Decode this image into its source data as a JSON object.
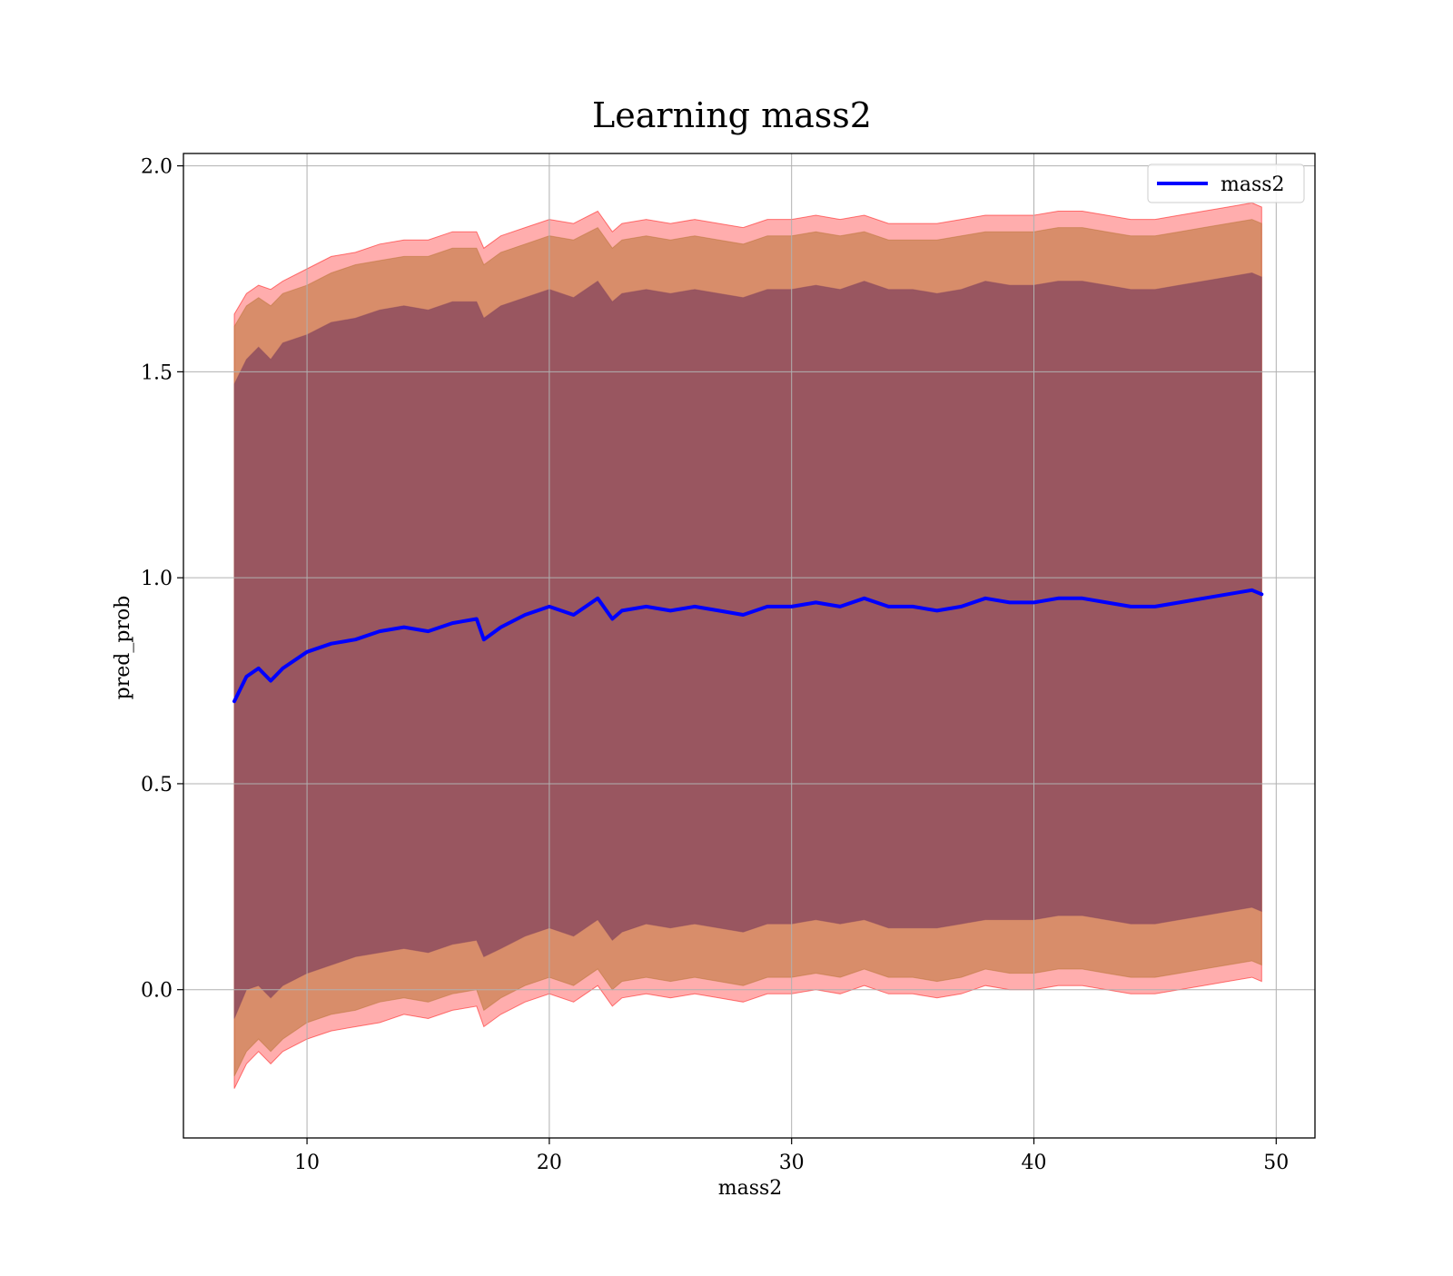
{
  "chart_data": {
    "type": "line",
    "title": "Learning mass2",
    "xlabel": "mass2",
    "ylabel": "pred_prob",
    "xlim": [
      4.9,
      51.6
    ],
    "ylim": [
      -0.36,
      2.03
    ],
    "x_ticks": [
      10,
      20,
      30,
      40,
      50
    ],
    "x_tick_labels": [
      "10",
      "20",
      "30",
      "40",
      "50"
    ],
    "y_ticks": [
      0.0,
      0.5,
      1.0,
      1.5,
      2.0
    ],
    "y_tick_labels": [
      "0.0",
      "0.5",
      "1.0",
      "1.5",
      "2.0"
    ],
    "grid": true,
    "legend": {
      "position": "top-right",
      "entries": [
        "mass2"
      ]
    },
    "series": [
      {
        "name": "mass2",
        "color": "#0000ff",
        "x": [
          7.0,
          7.5,
          8.0,
          8.5,
          9.0,
          10.0,
          11.0,
          12.0,
          13.0,
          14.0,
          15.0,
          16.0,
          17.0,
          17.3,
          18.0,
          19.0,
          20.0,
          21.0,
          22.0,
          22.6,
          23.0,
          24.0,
          25.0,
          26.0,
          27.0,
          28.0,
          29.0,
          30.0,
          31.0,
          32.0,
          33.0,
          34.0,
          35.0,
          36.0,
          37.0,
          38.0,
          39.0,
          40.0,
          41.0,
          42.0,
          43.0,
          44.0,
          45.0,
          46.0,
          47.0,
          48.0,
          49.0,
          49.4
        ],
        "y": [
          0.7,
          0.76,
          0.78,
          0.75,
          0.78,
          0.82,
          0.84,
          0.85,
          0.87,
          0.88,
          0.87,
          0.89,
          0.9,
          0.85,
          0.88,
          0.91,
          0.93,
          0.91,
          0.95,
          0.9,
          0.92,
          0.93,
          0.92,
          0.93,
          0.92,
          0.91,
          0.93,
          0.93,
          0.94,
          0.93,
          0.95,
          0.93,
          0.93,
          0.92,
          0.93,
          0.95,
          0.94,
          0.94,
          0.95,
          0.95,
          0.94,
          0.93,
          0.93,
          0.94,
          0.95,
          0.96,
          0.97,
          0.96
        ]
      }
    ],
    "bands": [
      {
        "name": "outer band",
        "color": "#ff0000",
        "opacity": 0.32,
        "x": [
          7.0,
          7.5,
          8.0,
          8.5,
          9.0,
          10.0,
          11.0,
          12.0,
          13.0,
          14.0,
          15.0,
          16.0,
          17.0,
          17.3,
          18.0,
          19.0,
          20.0,
          21.0,
          22.0,
          22.6,
          23.0,
          24.0,
          25.0,
          26.0,
          27.0,
          28.0,
          29.0,
          30.0,
          31.0,
          32.0,
          33.0,
          34.0,
          35.0,
          36.0,
          37.0,
          38.0,
          39.0,
          40.0,
          41.0,
          42.0,
          43.0,
          44.0,
          45.0,
          46.0,
          47.0,
          48.0,
          49.0,
          49.4
        ],
        "upper": [
          1.64,
          1.69,
          1.71,
          1.7,
          1.72,
          1.75,
          1.78,
          1.79,
          1.81,
          1.82,
          1.82,
          1.84,
          1.84,
          1.8,
          1.83,
          1.85,
          1.87,
          1.86,
          1.89,
          1.84,
          1.86,
          1.87,
          1.86,
          1.87,
          1.86,
          1.85,
          1.87,
          1.87,
          1.88,
          1.87,
          1.88,
          1.86,
          1.86,
          1.86,
          1.87,
          1.88,
          1.88,
          1.88,
          1.89,
          1.89,
          1.88,
          1.87,
          1.87,
          1.88,
          1.89,
          1.9,
          1.91,
          1.9
        ],
        "lower": [
          -0.24,
          -0.18,
          -0.15,
          -0.18,
          -0.15,
          -0.12,
          -0.1,
          -0.09,
          -0.08,
          -0.06,
          -0.07,
          -0.05,
          -0.04,
          -0.09,
          -0.06,
          -0.03,
          -0.01,
          -0.03,
          0.01,
          -0.04,
          -0.02,
          -0.01,
          -0.02,
          -0.01,
          -0.02,
          -0.03,
          -0.01,
          -0.01,
          0.0,
          -0.01,
          0.01,
          -0.01,
          -0.01,
          -0.02,
          -0.01,
          0.01,
          0.0,
          0.0,
          0.01,
          0.01,
          0.0,
          -0.01,
          -0.01,
          0.0,
          0.01,
          0.02,
          0.03,
          0.02
        ]
      },
      {
        "name": "middle band",
        "color": "#b87333",
        "opacity": 0.55,
        "x": [
          7.0,
          7.5,
          8.0,
          8.5,
          9.0,
          10.0,
          11.0,
          12.0,
          13.0,
          14.0,
          15.0,
          16.0,
          17.0,
          17.3,
          18.0,
          19.0,
          20.0,
          21.0,
          22.0,
          22.6,
          23.0,
          24.0,
          25.0,
          26.0,
          27.0,
          28.0,
          29.0,
          30.0,
          31.0,
          32.0,
          33.0,
          34.0,
          35.0,
          36.0,
          37.0,
          38.0,
          39.0,
          40.0,
          41.0,
          42.0,
          43.0,
          44.0,
          45.0,
          46.0,
          47.0,
          48.0,
          49.0,
          49.4
        ],
        "upper": [
          1.61,
          1.66,
          1.68,
          1.66,
          1.69,
          1.71,
          1.74,
          1.76,
          1.77,
          1.78,
          1.78,
          1.8,
          1.8,
          1.76,
          1.79,
          1.81,
          1.83,
          1.82,
          1.85,
          1.8,
          1.82,
          1.83,
          1.82,
          1.83,
          1.82,
          1.81,
          1.83,
          1.83,
          1.84,
          1.83,
          1.84,
          1.82,
          1.82,
          1.82,
          1.83,
          1.84,
          1.84,
          1.84,
          1.85,
          1.85,
          1.84,
          1.83,
          1.83,
          1.84,
          1.85,
          1.86,
          1.87,
          1.86
        ],
        "lower": [
          -0.21,
          -0.15,
          -0.12,
          -0.15,
          -0.12,
          -0.08,
          -0.06,
          -0.05,
          -0.03,
          -0.02,
          -0.03,
          -0.01,
          0.0,
          -0.05,
          -0.02,
          0.01,
          0.03,
          0.01,
          0.05,
          0.0,
          0.02,
          0.03,
          0.02,
          0.03,
          0.02,
          0.01,
          0.03,
          0.03,
          0.04,
          0.03,
          0.05,
          0.03,
          0.03,
          0.02,
          0.03,
          0.05,
          0.04,
          0.04,
          0.05,
          0.05,
          0.04,
          0.03,
          0.03,
          0.04,
          0.05,
          0.06,
          0.07,
          0.06
        ]
      },
      {
        "name": "inner band",
        "color": "#8b4a5e",
        "opacity": 0.82,
        "x": [
          7.0,
          7.5,
          8.0,
          8.5,
          9.0,
          10.0,
          11.0,
          12.0,
          13.0,
          14.0,
          15.0,
          16.0,
          17.0,
          17.3,
          18.0,
          19.0,
          20.0,
          21.0,
          22.0,
          22.6,
          23.0,
          24.0,
          25.0,
          26.0,
          27.0,
          28.0,
          29.0,
          30.0,
          31.0,
          32.0,
          33.0,
          34.0,
          35.0,
          36.0,
          37.0,
          38.0,
          39.0,
          40.0,
          41.0,
          42.0,
          43.0,
          44.0,
          45.0,
          46.0,
          47.0,
          48.0,
          49.0,
          49.4
        ],
        "upper": [
          1.47,
          1.53,
          1.56,
          1.53,
          1.57,
          1.59,
          1.62,
          1.63,
          1.65,
          1.66,
          1.65,
          1.67,
          1.67,
          1.63,
          1.66,
          1.68,
          1.7,
          1.68,
          1.72,
          1.67,
          1.69,
          1.7,
          1.69,
          1.7,
          1.69,
          1.68,
          1.7,
          1.7,
          1.71,
          1.7,
          1.72,
          1.7,
          1.7,
          1.69,
          1.7,
          1.72,
          1.71,
          1.71,
          1.72,
          1.72,
          1.71,
          1.7,
          1.7,
          1.71,
          1.72,
          1.73,
          1.74,
          1.73
        ],
        "lower": [
          -0.07,
          0.0,
          0.01,
          -0.02,
          0.01,
          0.04,
          0.06,
          0.08,
          0.09,
          0.1,
          0.09,
          0.11,
          0.12,
          0.08,
          0.1,
          0.13,
          0.15,
          0.13,
          0.17,
          0.12,
          0.14,
          0.16,
          0.15,
          0.16,
          0.15,
          0.14,
          0.16,
          0.16,
          0.17,
          0.16,
          0.17,
          0.15,
          0.15,
          0.15,
          0.16,
          0.17,
          0.17,
          0.17,
          0.18,
          0.18,
          0.17,
          0.16,
          0.16,
          0.17,
          0.18,
          0.19,
          0.2,
          0.19
        ]
      }
    ]
  }
}
